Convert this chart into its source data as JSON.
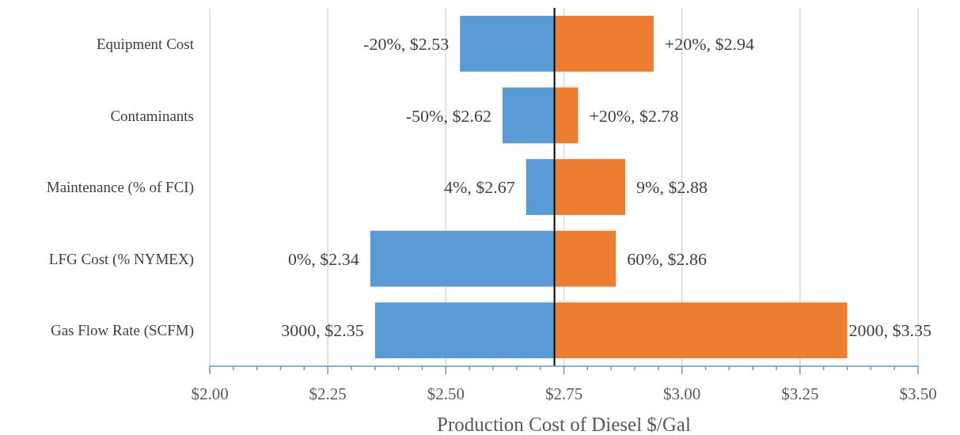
{
  "chart_data": {
    "type": "bar",
    "orientation": "horizontal",
    "xlabel": "Production Cost of Diesel $/Gal",
    "categories": [
      "Equipment Cost",
      "Contaminants",
      "Maintenance (% of FCI)",
      "LFG Cost (% NYMEX)",
      "Gas Flow Rate (SCFM)"
    ],
    "series": [
      {
        "color": "#5b9bd5",
        "base": [
          2.53,
          2.62,
          2.67,
          2.34,
          2.35
        ],
        "values": [
          0.2,
          0.11,
          0.06,
          0.39,
          0.38
        ]
      },
      {
        "color": "#ed7d31",
        "base": [
          2.73,
          2.73,
          2.73,
          2.73,
          2.73
        ],
        "values": [
          0.21,
          0.05,
          0.15,
          0.13,
          0.62
        ]
      }
    ],
    "annotations": [
      {
        "text": "-20%, $2.53",
        "x": 2.53,
        "y": "Equipment Cost"
      },
      {
        "text": "-50%, $2.62",
        "x": 2.62,
        "y": "Contaminants"
      },
      {
        "text": "4%, $2.67",
        "x": 2.67,
        "y": "Maintenance (% of FCI)"
      },
      {
        "text": "0%, $2.34",
        "x": 2.34,
        "y": "LFG Cost (% NYMEX)"
      },
      {
        "text": "3000, $2.35",
        "x": 2.35,
        "y": "Gas Flow Rate (SCFM)"
      },
      {
        "text": "+20%, $2.94",
        "x": 2.94,
        "y": "Equipment Cost"
      },
      {
        "text": "+20%, $2.78",
        "x": 2.78,
        "y": "Contaminants"
      },
      {
        "text": "9%, $2.88",
        "x": 2.88,
        "y": "Maintenance (% of FCI)"
      },
      {
        "text": "60%, $2.86",
        "x": 2.86,
        "y": "LFG Cost (% NYMEX)"
      },
      {
        "text": "2000, $3.35",
        "x": 3.35,
        "y": "Gas Flow Rate (SCFM)"
      }
    ],
    "xlim": [
      2.0,
      3.5
    ],
    "xticks": [
      {
        "value": 2.0,
        "label": "$2.00"
      },
      {
        "value": 2.05,
        "label": null
      },
      {
        "value": 2.1,
        "label": null
      },
      {
        "value": 2.15,
        "label": null
      },
      {
        "value": 2.2,
        "label": null
      },
      {
        "value": 2.25,
        "label": "$2.25"
      },
      {
        "value": 2.3,
        "label": null
      },
      {
        "value": 2.35,
        "label": null
      },
      {
        "value": 2.4,
        "label": null
      },
      {
        "value": 2.45,
        "label": null
      },
      {
        "value": 2.5,
        "label": "$2.50"
      },
      {
        "value": 2.55,
        "label": null
      },
      {
        "value": 2.6,
        "label": null
      },
      {
        "value": 2.65,
        "label": null
      },
      {
        "value": 2.7,
        "label": null
      },
      {
        "value": 2.75,
        "label": "$2.75"
      },
      {
        "value": 2.8,
        "label": null
      },
      {
        "value": 2.85,
        "label": null
      },
      {
        "value": 2.9,
        "label": null
      },
      {
        "value": 2.95,
        "label": null
      },
      {
        "value": 3.0,
        "label": "$3.00"
      },
      {
        "value": 3.05,
        "label": null
      },
      {
        "value": 3.1,
        "label": null
      },
      {
        "value": 3.15,
        "label": null
      },
      {
        "value": 3.2,
        "label": null
      },
      {
        "value": 3.25,
        "label": "$3.25"
      },
      {
        "value": 3.3,
        "label": null
      },
      {
        "value": 3.35,
        "label": null
      },
      {
        "value": 3.4,
        "label": null
      },
      {
        "value": 3.45,
        "label": null
      },
      {
        "value": 3.5,
        "label": "$3.50"
      }
    ],
    "ref_lines": [
      {
        "axis": "x",
        "value": 2.73,
        "color": "#000000"
      }
    ],
    "grid": "x"
  }
}
